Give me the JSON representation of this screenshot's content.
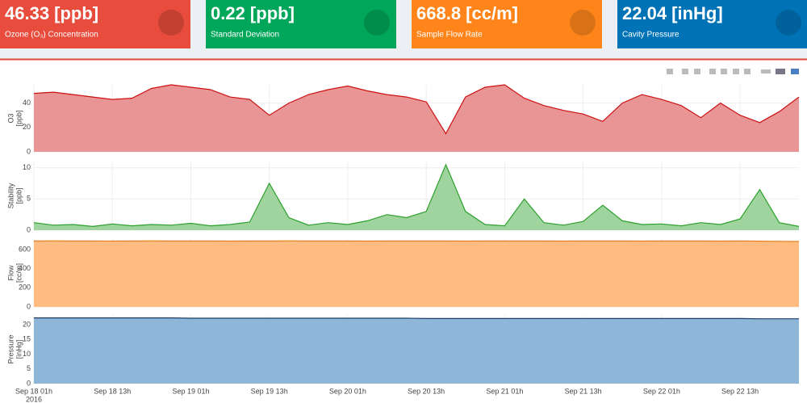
{
  "cards": [
    {
      "value": "46.33 [ppb]",
      "label": "Ozone (O₃) Concentration",
      "color": "#e74c3c"
    },
    {
      "value": "0.22 [ppb]",
      "label": "Standard Deviation",
      "color": "#00a65a"
    },
    {
      "value": "668.8 [cc/m]",
      "label": "Sample Flow Rate",
      "color": "#ff851b"
    },
    {
      "value": "22.04 [inHg]",
      "label": "Cavity Pressure",
      "color": "#0073b7"
    }
  ],
  "chart_data": [
    {
      "type": "area",
      "ylabel": [
        "O3",
        "[ppb]"
      ],
      "line_color": "#cc1111",
      "fill_color": "#e99596",
      "x": [
        "2016-09-18 01:00",
        "2016-09-18 04:00",
        "2016-09-18 07:00",
        "2016-09-18 10:00",
        "2016-09-18 13:00",
        "2016-09-18 16:00",
        "2016-09-18 19:00",
        "2016-09-18 22:00",
        "2016-09-19 01:00",
        "2016-09-19 04:00",
        "2016-09-19 07:00",
        "2016-09-19 10:00",
        "2016-09-19 13:00",
        "2016-09-19 16:00",
        "2016-09-19 19:00",
        "2016-09-19 22:00",
        "2016-09-20 01:00",
        "2016-09-20 04:00",
        "2016-09-20 07:00",
        "2016-09-20 10:00",
        "2016-09-20 13:00",
        "2016-09-20 16:00",
        "2016-09-20 19:00",
        "2016-09-20 22:00",
        "2016-09-21 01:00",
        "2016-09-21 04:00",
        "2016-09-21 07:00",
        "2016-09-21 10:00",
        "2016-09-21 13:00",
        "2016-09-21 16:00",
        "2016-09-21 19:00",
        "2016-09-21 22:00",
        "2016-09-22 01:00",
        "2016-09-22 04:00",
        "2016-09-22 07:00",
        "2016-09-22 10:00",
        "2016-09-22 13:00",
        "2016-09-22 16:00",
        "2016-09-22 19:00",
        "2016-09-22 22:00"
      ],
      "values": [
        48,
        49,
        47,
        45,
        43,
        44,
        52,
        55,
        53,
        51,
        45,
        43,
        30,
        40,
        47,
        51,
        54,
        50,
        47,
        45,
        41,
        15,
        45,
        53,
        55,
        44,
        38,
        34,
        31,
        25,
        40,
        47,
        43,
        38,
        28,
        40,
        30,
        24,
        33,
        45
      ],
      "xlim": [
        "2016-09-18 01:00",
        "2016-09-22 22:00"
      ],
      "ylim": [
        0,
        55
      ],
      "yticks": [
        0,
        20,
        40
      ]
    },
    {
      "type": "area",
      "ylabel": [
        "Stability",
        "[ppb]"
      ],
      "line_color": "#2ca02c",
      "fill_color": "#9fd49f",
      "x": [
        "2016-09-18 01:00",
        "2016-09-18 04:00",
        "2016-09-18 07:00",
        "2016-09-18 10:00",
        "2016-09-18 13:00",
        "2016-09-18 16:00",
        "2016-09-18 19:00",
        "2016-09-18 22:00",
        "2016-09-19 01:00",
        "2016-09-19 04:00",
        "2016-09-19 07:00",
        "2016-09-19 10:00",
        "2016-09-19 13:00",
        "2016-09-19 16:00",
        "2016-09-19 19:00",
        "2016-09-19 22:00",
        "2016-09-20 01:00",
        "2016-09-20 04:00",
        "2016-09-20 07:00",
        "2016-09-20 10:00",
        "2016-09-20 13:00",
        "2016-09-20 16:00",
        "2016-09-20 19:00",
        "2016-09-20 22:00",
        "2016-09-21 01:00",
        "2016-09-21 04:00",
        "2016-09-21 07:00",
        "2016-09-21 10:00",
        "2016-09-21 13:00",
        "2016-09-21 16:00",
        "2016-09-21 19:00",
        "2016-09-21 22:00",
        "2016-09-22 01:00",
        "2016-09-22 04:00",
        "2016-09-22 07:00",
        "2016-09-22 10:00",
        "2016-09-22 13:00",
        "2016-09-22 16:00",
        "2016-09-22 19:00",
        "2016-09-22 22:00"
      ],
      "values": [
        1.2,
        0.8,
        0.9,
        0.6,
        1.0,
        0.7,
        0.9,
        0.8,
        1.1,
        0.7,
        0.9,
        1.3,
        7.5,
        2.0,
        0.8,
        1.2,
        0.9,
        1.5,
        2.5,
        2.0,
        3.0,
        10.5,
        3.0,
        0.9,
        0.7,
        5.0,
        1.2,
        0.8,
        1.4,
        4.0,
        1.5,
        0.9,
        1.0,
        0.7,
        1.2,
        0.9,
        1.8,
        6.5,
        1.2,
        0.6
      ],
      "xlim": [
        "2016-09-18 01:00",
        "2016-09-22 22:00"
      ],
      "ylim": [
        0,
        11
      ],
      "yticks": [
        0,
        5,
        10
      ]
    },
    {
      "type": "area",
      "ylabel": [
        "Flow",
        "[cc/m]"
      ],
      "line_color": "#e67e22",
      "fill_color": "#ffbb80",
      "x": [
        "2016-09-18 01:00",
        "2016-09-18 04:00",
        "2016-09-18 07:00",
        "2016-09-18 10:00",
        "2016-09-18 13:00",
        "2016-09-18 16:00",
        "2016-09-18 19:00",
        "2016-09-18 22:00",
        "2016-09-19 01:00",
        "2016-09-19 04:00",
        "2016-09-19 07:00",
        "2016-09-19 10:00",
        "2016-09-19 13:00",
        "2016-09-19 16:00",
        "2016-09-19 19:00",
        "2016-09-19 22:00",
        "2016-09-20 01:00",
        "2016-09-20 04:00",
        "2016-09-20 07:00",
        "2016-09-20 10:00",
        "2016-09-20 13:00",
        "2016-09-20 16:00",
        "2016-09-20 19:00",
        "2016-09-20 22:00",
        "2016-09-21 01:00",
        "2016-09-21 04:00",
        "2016-09-21 07:00",
        "2016-09-21 10:00",
        "2016-09-21 13:00",
        "2016-09-21 16:00",
        "2016-09-21 19:00",
        "2016-09-21 22:00",
        "2016-09-22 01:00",
        "2016-09-22 04:00",
        "2016-09-22 07:00",
        "2016-09-22 10:00",
        "2016-09-22 13:00",
        "2016-09-22 16:00",
        "2016-09-22 19:00",
        "2016-09-22 22:00"
      ],
      "values": [
        690,
        691,
        690,
        690,
        689,
        690,
        691,
        690,
        690,
        690,
        689,
        690,
        690,
        691,
        690,
        690,
        690,
        689,
        690,
        690,
        690,
        690,
        689,
        690,
        690,
        690,
        690,
        689,
        690,
        690,
        690,
        689,
        690,
        690,
        690,
        689,
        690,
        688,
        686,
        685
      ],
      "xlim": [
        "2016-09-18 01:00",
        "2016-09-22 22:00"
      ],
      "ylim": [
        0,
        710
      ],
      "yticks": [
        0,
        200,
        400,
        600
      ]
    },
    {
      "type": "area",
      "ylabel": [
        "Pressure",
        "[inHg]"
      ],
      "line_color": "#1f3f66",
      "fill_color": "#8db6d8",
      "x": [
        "2016-09-18 01:00",
        "2016-09-18 04:00",
        "2016-09-18 07:00",
        "2016-09-18 10:00",
        "2016-09-18 13:00",
        "2016-09-18 16:00",
        "2016-09-18 19:00",
        "2016-09-18 22:00",
        "2016-09-19 01:00",
        "2016-09-19 04:00",
        "2016-09-19 07:00",
        "2016-09-19 10:00",
        "2016-09-19 13:00",
        "2016-09-19 16:00",
        "2016-09-19 19:00",
        "2016-09-19 22:00",
        "2016-09-20 01:00",
        "2016-09-20 04:00",
        "2016-09-20 07:00",
        "2016-09-20 10:00",
        "2016-09-20 13:00",
        "2016-09-20 16:00",
        "2016-09-20 19:00",
        "2016-09-20 22:00",
        "2016-09-21 01:00",
        "2016-09-21 04:00",
        "2016-09-21 07:00",
        "2016-09-21 10:00",
        "2016-09-21 13:00",
        "2016-09-21 16:00",
        "2016-09-21 19:00",
        "2016-09-21 22:00",
        "2016-09-22 01:00",
        "2016-09-22 04:00",
        "2016-09-22 07:00",
        "2016-09-22 10:00",
        "2016-09-22 13:00",
        "2016-09-22 16:00",
        "2016-09-22 19:00",
        "2016-09-22 22:00"
      ],
      "values": [
        22.3,
        22.3,
        22.3,
        22.3,
        22.3,
        22.3,
        22.3,
        22.3,
        22.2,
        22.2,
        22.2,
        22.2,
        22.2,
        22.2,
        22.2,
        22.2,
        22.2,
        22.2,
        22.2,
        22.2,
        22.1,
        22.1,
        22.1,
        22.1,
        22.1,
        22.1,
        22.1,
        22.1,
        22.1,
        22.1,
        22.1,
        22.1,
        22.1,
        22.1,
        22.1,
        22.1,
        22.1,
        22.0,
        22.0,
        22.0
      ],
      "xlim": [
        "2016-09-18 01:00",
        "2016-09-22 22:00"
      ],
      "ylim": [
        0,
        23.3
      ],
      "yticks": [
        0,
        5,
        10,
        15,
        20
      ],
      "xyear": "2016",
      "xticks": [
        {
          "value": "2016-09-18 01:00",
          "label": "Sep 18 01h"
        },
        {
          "value": "2016-09-18 13:00",
          "label": "Sep 18 13h"
        },
        {
          "value": "2016-09-19 01:00",
          "label": "Sep 19 01h"
        },
        {
          "value": "2016-09-19 13:00",
          "label": "Sep 19 13h"
        },
        {
          "value": "2016-09-20 01:00",
          "label": "Sep 20 01h"
        },
        {
          "value": "2016-09-20 13:00",
          "label": "Sep 20 13h"
        },
        {
          "value": "2016-09-21 01:00",
          "label": "Sep 21 01h"
        },
        {
          "value": "2016-09-21 13:00",
          "label": "Sep 21 13h"
        },
        {
          "value": "2016-09-22 01:00",
          "label": "Sep 22 01h"
        },
        {
          "value": "2016-09-22 13:00",
          "label": "Sep 22 13h"
        }
      ]
    }
  ]
}
